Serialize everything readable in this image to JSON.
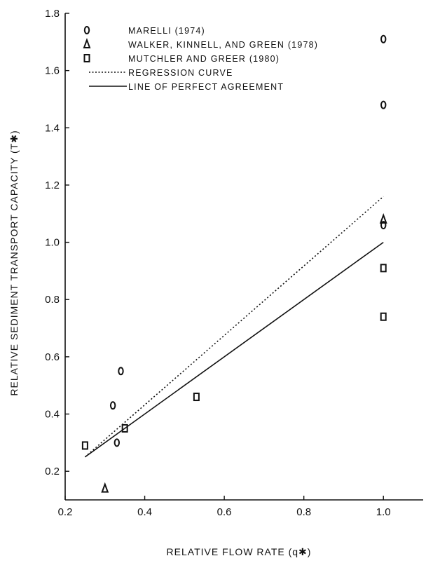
{
  "chart_data": {
    "type": "scatter",
    "title": "",
    "xlabel": "RELATIVE FLOW RATE (q✱)",
    "ylabel": "RELATIVE SEDIMENT TRANSPORT CAPACITY (T✱)",
    "xlim": [
      0.2,
      1.1
    ],
    "ylim": [
      0.1,
      1.8
    ],
    "xticks": [
      "0.2",
      "0.4",
      "0.6",
      "0.8",
      "1.0"
    ],
    "yticks": [
      "0.2",
      "0.4",
      "0.6",
      "0.8",
      "1.0",
      "1.2",
      "1.4",
      "1.6",
      "1.8"
    ],
    "grid": false,
    "legend_position": "top-left",
    "series": [
      {
        "name": "MARELLI (1974)",
        "marker": "circle",
        "points": [
          {
            "x": 0.32,
            "y": 0.43
          },
          {
            "x": 0.33,
            "y": 0.3
          },
          {
            "x": 0.34,
            "y": 0.55
          },
          {
            "x": 1.0,
            "y": 1.71
          },
          {
            "x": 1.0,
            "y": 1.48
          },
          {
            "x": 1.0,
            "y": 1.06
          }
        ]
      },
      {
        "name": "WALKER, KINNELL, AND GREEN (1978)",
        "marker": "triangle",
        "points": [
          {
            "x": 0.3,
            "y": 0.14
          },
          {
            "x": 1.0,
            "y": 1.08
          }
        ]
      },
      {
        "name": "MUTCHLER AND GREER (1980)",
        "marker": "square",
        "points": [
          {
            "x": 0.25,
            "y": 0.29
          },
          {
            "x": 0.35,
            "y": 0.35
          },
          {
            "x": 0.53,
            "y": 0.46
          },
          {
            "x": 1.0,
            "y": 0.91
          },
          {
            "x": 1.0,
            "y": 0.74
          }
        ]
      }
    ],
    "lines": [
      {
        "name": "REGRESSION CURVE",
        "style": "dotted",
        "points": [
          {
            "x": 0.25,
            "y": 0.25
          },
          {
            "x": 1.0,
            "y": 1.16
          }
        ]
      },
      {
        "name": "LINE OF PERFECT AGREEMENT",
        "style": "solid",
        "points": [
          {
            "x": 0.25,
            "y": 0.25
          },
          {
            "x": 1.0,
            "y": 1.0
          }
        ]
      }
    ]
  }
}
